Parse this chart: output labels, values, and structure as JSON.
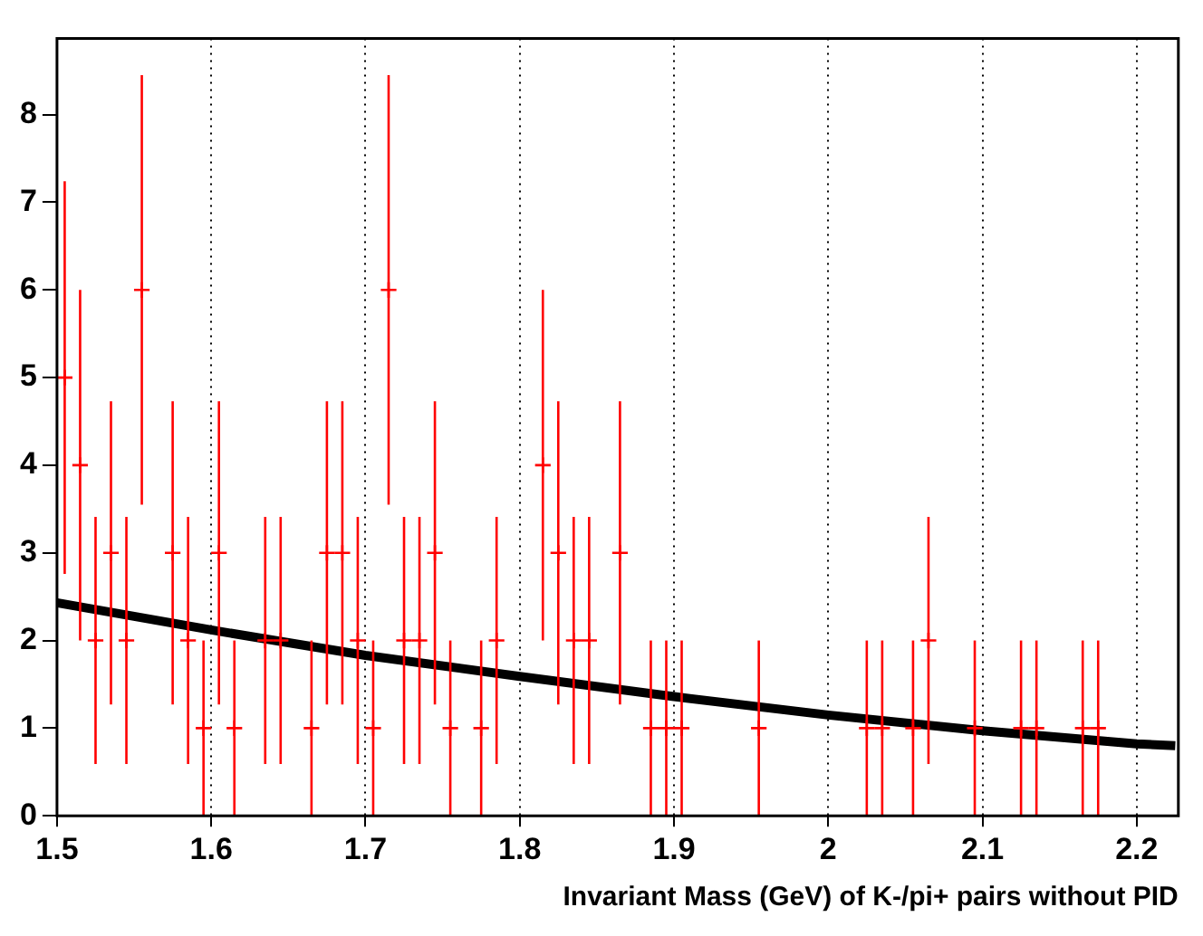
{
  "chart_data": {
    "type": "scatter",
    "xlabel": "Invariant Mass (GeV) of K-/pi+ pairs without PID",
    "xlim": [
      1.5,
      2.227
    ],
    "ylim": [
      0,
      8.87
    ],
    "xticks": [
      1.5,
      1.6,
      1.7,
      1.8,
      1.9,
      2,
      2.1,
      2.2
    ],
    "yticks": [
      0,
      1,
      2,
      3,
      4,
      5,
      6,
      7,
      8
    ],
    "grid": "x",
    "series": [
      {
        "color": "#ff0000",
        "marker": "cross",
        "x": [
          1.505,
          1.515,
          1.525,
          1.535,
          1.545,
          1.555,
          1.575,
          1.585,
          1.595,
          1.605,
          1.615,
          1.635,
          1.645,
          1.665,
          1.675,
          1.685,
          1.695,
          1.705,
          1.715,
          1.725,
          1.735,
          1.745,
          1.755,
          1.775,
          1.785,
          1.815,
          1.825,
          1.835,
          1.845,
          1.865,
          1.885,
          1.895,
          1.905,
          1.955,
          2.025,
          2.035,
          2.055,
          2.065,
          2.095,
          2.125,
          2.135,
          2.165,
          2.175
        ],
        "values": [
          5,
          4,
          2,
          3,
          2,
          6,
          3,
          2,
          1,
          3,
          1,
          2,
          2,
          1,
          3,
          3,
          2,
          1,
          6,
          2,
          2,
          3,
          1,
          1,
          2,
          4,
          3,
          2,
          2,
          3,
          1,
          1,
          1,
          1,
          1,
          1,
          1,
          2,
          1,
          1,
          1,
          1,
          1
        ],
        "errors": [
          2.24,
          2,
          1.41,
          1.73,
          1.41,
          2.45,
          1.73,
          1.41,
          1,
          1.73,
          1,
          1.41,
          1.41,
          1,
          1.73,
          1.73,
          1.41,
          1,
          2.45,
          1.41,
          1.41,
          1.73,
          1,
          1,
          1.41,
          2,
          1.73,
          1.41,
          1.41,
          1.73,
          1,
          1,
          1,
          1,
          1,
          1,
          1,
          1.41,
          1,
          1,
          1,
          1,
          1
        ]
      },
      {
        "type": "line",
        "color": "#000000",
        "line_style": "solid",
        "x": [
          1.5,
          1.6,
          1.7,
          1.8,
          1.9,
          2,
          2.1,
          2.2,
          2.225
        ],
        "values": [
          2.43,
          2.12,
          1.83,
          1.59,
          1.36,
          1.15,
          0.97,
          0.82,
          0.8
        ]
      }
    ]
  }
}
